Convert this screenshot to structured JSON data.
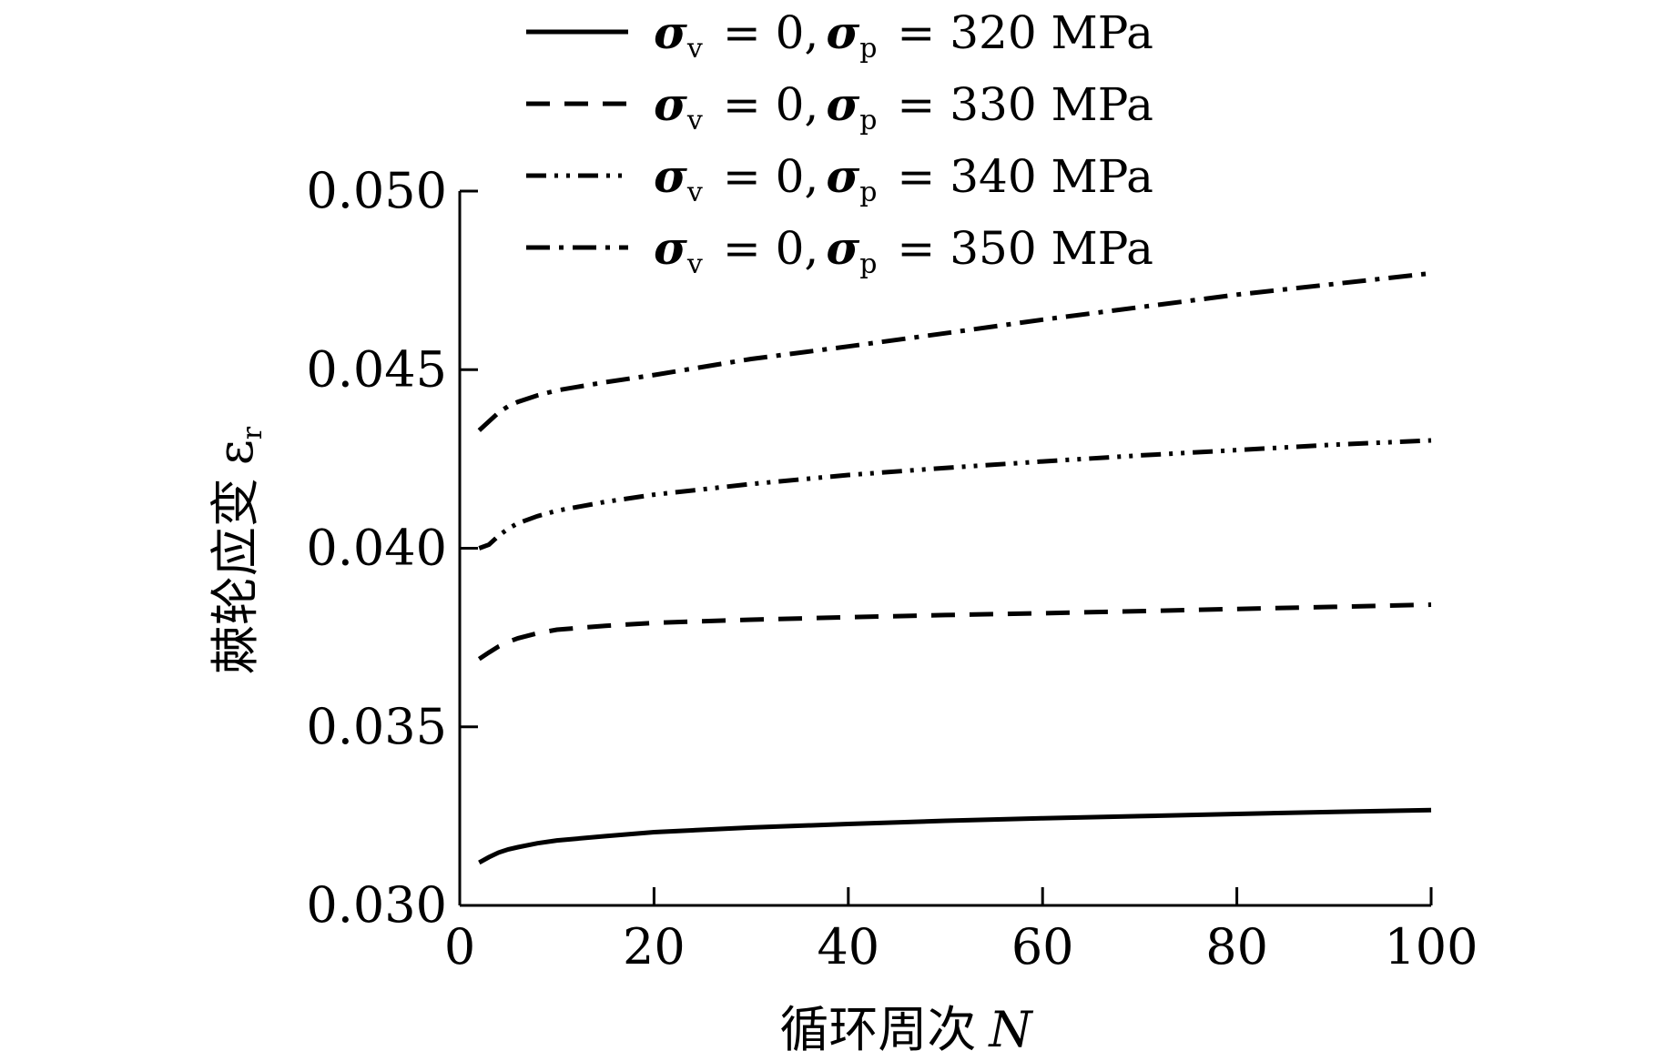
{
  "chart_data": {
    "type": "line",
    "xlabel": "循环周次",
    "xlabel_var": "N",
    "ylabel": "棘轮应变",
    "ylabel_var": "ε",
    "ylabel_sub": "r",
    "xlim": [
      0,
      100
    ],
    "ylim": [
      0.03,
      0.05
    ],
    "xticks": [
      "0",
      "20",
      "40",
      "60",
      "80",
      "100"
    ],
    "yticks": [
      "0.030",
      "0.035",
      "0.040",
      "0.045",
      "0.050"
    ],
    "grid": false,
    "legend_position": "top",
    "series": [
      {
        "name": "σv = 0,σp = 320 MPa",
        "legend": {
          "sym1": "σ",
          "sub1": "v",
          "mid": "= 0,",
          "sym2": "σ",
          "sub2": "p",
          "tail": "= 320 MPa"
        },
        "style": "solid",
        "x": [
          2,
          3,
          4,
          5,
          6,
          8,
          10,
          15,
          20,
          30,
          40,
          50,
          60,
          70,
          80,
          90,
          100
        ],
        "y": [
          0.0312,
          0.03135,
          0.03148,
          0.03157,
          0.03163,
          0.03174,
          0.03182,
          0.03194,
          0.03205,
          0.03218,
          0.03228,
          0.03237,
          0.03244,
          0.0325,
          0.03256,
          0.03262,
          0.03267
        ]
      },
      {
        "name": "σv = 0,σp = 330 MPa",
        "legend": {
          "sym1": "σ",
          "sub1": "v",
          "mid": "= 0,",
          "sym2": "σ",
          "sub2": "p",
          "tail": "= 330 MPa"
        },
        "style": "dashed",
        "x": [
          2,
          3,
          4,
          5,
          6,
          8,
          10,
          15,
          20,
          30,
          40,
          50,
          60,
          70,
          80,
          90,
          100
        ],
        "y": [
          0.0369,
          0.03708,
          0.03725,
          0.03738,
          0.03748,
          0.03762,
          0.03772,
          0.03783,
          0.03791,
          0.038,
          0.03807,
          0.03813,
          0.03818,
          0.03824,
          0.0383,
          0.03836,
          0.03842
        ]
      },
      {
        "name": "σv = 0,σp = 340 MPa",
        "legend": {
          "sym1": "σ",
          "sub1": "v",
          "mid": "= 0,",
          "sym2": "σ",
          "sub2": "p",
          "tail": "= 340 MPa"
        },
        "style": "dash-dot-dot",
        "x": [
          2,
          3,
          4,
          5,
          6,
          8,
          10,
          15,
          20,
          30,
          40,
          50,
          60,
          70,
          80,
          90,
          100
        ],
        "y": [
          0.04,
          0.0401,
          0.04035,
          0.04055,
          0.0407,
          0.0409,
          0.04105,
          0.0413,
          0.0415,
          0.0418,
          0.04205,
          0.04225,
          0.04243,
          0.0426,
          0.04275,
          0.0429,
          0.04302
        ]
      },
      {
        "name": "σv = 0,σp = 350 MPa",
        "legend": {
          "sym1": "σ",
          "sub1": "v",
          "mid": "= 0,",
          "sym2": "σ",
          "sub2": "p",
          "tail": "= 350 MPa"
        },
        "style": "dash-dot",
        "x": [
          2,
          3,
          4,
          5,
          6,
          8,
          10,
          15,
          20,
          30,
          40,
          50,
          60,
          70,
          80,
          90,
          100
        ],
        "y": [
          0.0433,
          0.04355,
          0.0438,
          0.04398,
          0.0441,
          0.04428,
          0.04442,
          0.04465,
          0.04485,
          0.0453,
          0.04565,
          0.04602,
          0.0464,
          0.04675,
          0.0471,
          0.0474,
          0.0477
        ]
      }
    ]
  }
}
